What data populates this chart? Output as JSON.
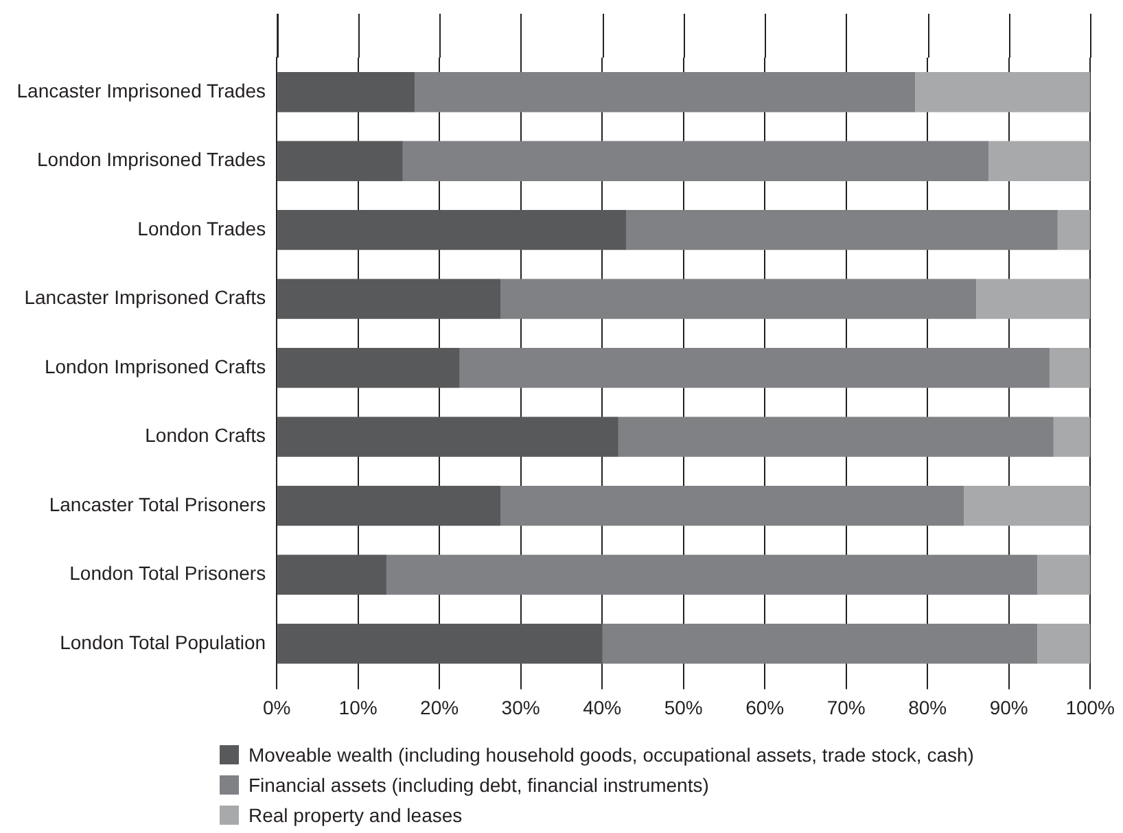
{
  "chart_data": {
    "type": "bar",
    "orientation": "horizontal",
    "stacked": true,
    "categories": [
      "Lancaster Imprisoned Trades",
      "London Imprisoned Trades",
      "London Trades",
      "Lancaster Imprisoned Crafts",
      "London Imprisoned Crafts",
      "London Crafts",
      "Lancaster Total Prisoners",
      "London Total Prisoners",
      "London Total Population"
    ],
    "series": [
      {
        "name": "Moveable wealth (including household goods, occupational assets, trade stock, cash)",
        "color": "#58595b",
        "values": [
          17,
          15.5,
          43,
          27.5,
          22.5,
          42,
          27.5,
          13.5,
          40
        ]
      },
      {
        "name": "Financial assets (including debt, financial instruments)",
        "color": "#808184",
        "values": [
          61.5,
          72,
          53,
          58.5,
          72.5,
          53.5,
          57,
          80,
          53.5
        ]
      },
      {
        "name": "Real property and leases",
        "color": "#a7a9ab",
        "values": [
          21.5,
          12.5,
          4,
          14,
          5,
          4.5,
          15.5,
          6.5,
          6.5
        ]
      }
    ],
    "xlim": [
      0,
      100
    ],
    "xticks": [
      {
        "value": 0,
        "label": "0%"
      },
      {
        "value": 10,
        "label": "10%"
      },
      {
        "value": 20,
        "label": "20%"
      },
      {
        "value": 30,
        "label": "30%"
      },
      {
        "value": 40,
        "label": "40%"
      },
      {
        "value": 50,
        "label": "50%"
      },
      {
        "value": 60,
        "label": "60%"
      },
      {
        "value": 70,
        "label": "70%"
      },
      {
        "value": 80,
        "label": "80%"
      },
      {
        "value": 90,
        "label": "90%"
      },
      {
        "value": 100,
        "label": "100%"
      }
    ],
    "grid": "x",
    "legend": "bottom"
  }
}
